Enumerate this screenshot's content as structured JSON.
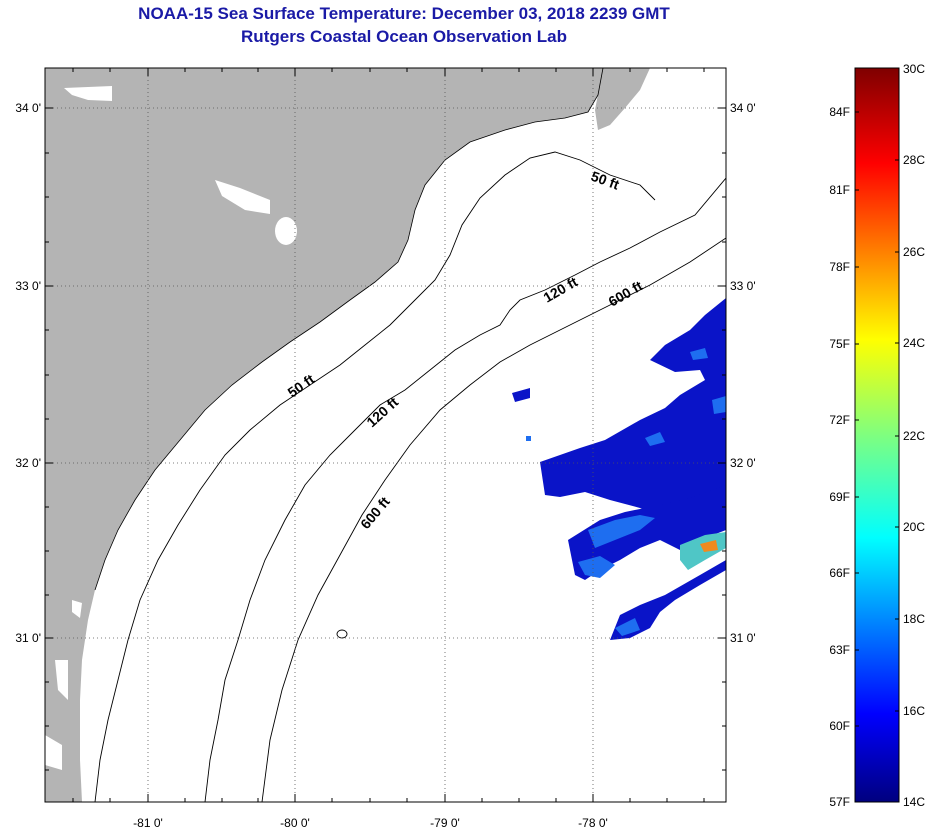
{
  "header": {
    "title": "NOAA-15 Sea Surface Temperature:  December 03, 2018 2239 GMT",
    "subtitle": "Rutgers Coastal Ocean Observation Lab"
  },
  "map": {
    "lat_labels": [
      "34 0'",
      "33 0'",
      "32 0'",
      "31 0'"
    ],
    "lon_labels": [
      "-81 0'",
      "-80 0'",
      "-79 0'",
      "-78 0'"
    ],
    "contour_labels": [
      {
        "text": "50 ft",
        "depth": "50"
      },
      {
        "text": "120 ft",
        "depth": "120"
      },
      {
        "text": "600 ft",
        "depth": "600"
      },
      {
        "text": "50 ft",
        "depth": "50"
      },
      {
        "text": "120 ft",
        "depth": "120"
      },
      {
        "text": "600 ft",
        "depth": "600"
      }
    ],
    "colors": {
      "land": "#b4b4b4",
      "title": "#1a1aa6",
      "sst_low": "#0a14c8",
      "sst_mid": "#1e6ef0"
    }
  },
  "colorbar": {
    "fahrenheit": [
      "84F",
      "81F",
      "78F",
      "75F",
      "72F",
      "69F",
      "66F",
      "63F",
      "60F",
      "57F"
    ],
    "celsius": [
      "30C",
      "28C",
      "26C",
      "24C",
      "22C",
      "20C",
      "18C",
      "16C",
      "14C"
    ]
  }
}
